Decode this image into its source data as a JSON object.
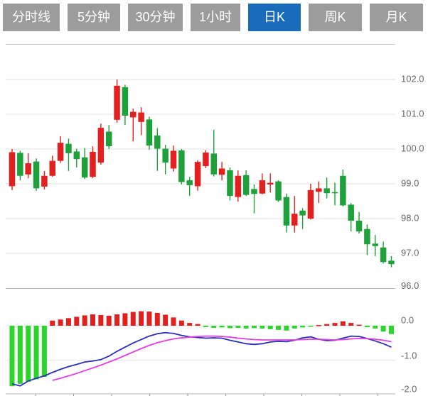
{
  "tabs": {
    "items": [
      {
        "label": "分时线",
        "name": "tab-timeline",
        "active": false
      },
      {
        "label": "5分钟",
        "name": "tab-5min",
        "active": false
      },
      {
        "label": "30分钟",
        "name": "tab-30min",
        "active": false
      },
      {
        "label": "1小时",
        "name": "tab-1hour",
        "active": false
      },
      {
        "label": "日K",
        "name": "tab-daily-k",
        "active": true
      },
      {
        "label": "周K",
        "name": "tab-weekly-k",
        "active": false
      },
      {
        "label": "月K",
        "name": "tab-monthly-k",
        "active": false
      }
    ],
    "active_color": "#1a6cba",
    "inactive_color": "#9c9c9c"
  },
  "chart_data": {
    "type": "candlestick",
    "title": "",
    "price_axis": {
      "labels": [
        "102.0",
        "101.0",
        "100.0",
        "99.0",
        "98.0",
        "97.0",
        "96.0"
      ],
      "values": [
        102.0,
        101.0,
        100.0,
        99.0,
        98.0,
        97.0,
        96.0
      ],
      "range": [
        96.0,
        103.1
      ],
      "grid": true,
      "position": "right"
    },
    "macd_axis": {
      "labels": [
        "0.0",
        "-1.0",
        "-2.0"
      ],
      "values": [
        0.0,
        -1.0,
        -2.0
      ],
      "range": [
        -2.0,
        0.45
      ]
    },
    "candles_ohlc": [
      [
        98.93,
        100.0,
        98.82,
        99.91
      ],
      [
        99.89,
        99.95,
        99.1,
        99.23
      ],
      [
        99.27,
        99.88,
        99.16,
        99.59
      ],
      [
        99.64,
        99.73,
        98.8,
        98.87
      ],
      [
        98.92,
        99.37,
        98.84,
        99.23
      ],
      [
        99.23,
        99.81,
        99.2,
        99.66
      ],
      [
        99.66,
        100.37,
        99.6,
        100.18
      ],
      [
        100.15,
        100.3,
        99.37,
        99.88
      ],
      [
        99.93,
        100.01,
        99.47,
        99.71
      ],
      [
        99.76,
        100.03,
        99.14,
        99.18
      ],
      [
        99.2,
        100.08,
        99.16,
        99.92
      ],
      [
        99.61,
        100.73,
        99.55,
        100.61
      ],
      [
        100.5,
        100.69,
        100.0,
        100.08
      ],
      [
        100.84,
        102.0,
        100.76,
        101.82
      ],
      [
        101.78,
        101.85,
        100.69,
        100.96
      ],
      [
        100.91,
        101.16,
        100.22,
        101.07
      ],
      [
        100.78,
        101.2,
        100.4,
        101.05
      ],
      [
        100.85,
        100.93,
        99.98,
        100.1
      ],
      [
        100.39,
        100.6,
        99.37,
        100.01
      ],
      [
        100.01,
        100.12,
        99.27,
        99.61
      ],
      [
        99.44,
        100.1,
        99.35,
        99.95
      ],
      [
        99.96,
        100.0,
        98.98,
        99.05
      ],
      [
        99.1,
        99.2,
        98.65,
        98.96
      ],
      [
        98.93,
        99.68,
        98.8,
        99.63
      ],
      [
        99.51,
        99.97,
        99.45,
        99.9
      ],
      [
        99.87,
        100.55,
        99.21,
        99.27
      ],
      [
        99.26,
        99.63,
        99.1,
        99.44
      ],
      [
        99.39,
        99.47,
        98.52,
        98.65
      ],
      [
        98.62,
        99.39,
        98.49,
        99.23
      ],
      [
        99.25,
        99.39,
        98.65,
        98.68
      ],
      [
        98.85,
        98.98,
        98.15,
        98.71
      ],
      [
        98.72,
        99.3,
        98.7,
        99.1
      ],
      [
        98.98,
        99.3,
        98.75,
        99.03
      ],
      [
        99.07,
        99.1,
        98.48,
        98.52
      ],
      [
        98.62,
        98.72,
        97.6,
        97.8
      ],
      [
        97.8,
        98.65,
        97.6,
        98.14
      ],
      [
        98.23,
        98.3,
        97.7,
        98.09
      ],
      [
        98.0,
        99.0,
        97.97,
        98.82
      ],
      [
        98.77,
        99.07,
        98.45,
        98.87
      ],
      [
        98.87,
        99.18,
        98.58,
        98.73
      ],
      [
        98.76,
        99.03,
        98.38,
        98.74
      ],
      [
        99.23,
        99.41,
        98.35,
        98.38
      ],
      [
        98.4,
        98.45,
        97.63,
        97.94
      ],
      [
        97.94,
        98.19,
        97.57,
        97.63
      ],
      [
        97.7,
        97.83,
        96.95,
        97.26
      ],
      [
        97.28,
        97.53,
        96.92,
        97.21
      ],
      [
        97.17,
        97.34,
        96.71,
        96.75
      ],
      [
        96.79,
        96.92,
        96.6,
        96.69
      ]
    ],
    "macd": {
      "histogram": [
        -1.75,
        -1.68,
        -1.62,
        -1.55,
        -1.48,
        0.15,
        0.18,
        0.22,
        0.26,
        0.3,
        0.33,
        0.31,
        0.29,
        0.33,
        0.36,
        0.4,
        0.42,
        0.41,
        0.37,
        0.32,
        0.24,
        0.15,
        0.08,
        0.05,
        -0.04,
        -0.06,
        -0.05,
        -0.07,
        -0.06,
        -0.08,
        -0.07,
        -0.08,
        -0.1,
        -0.12,
        -0.14,
        -0.08,
        -0.05,
        -0.03,
        0.02,
        0.05,
        0.08,
        0.13,
        0.08,
        0.03,
        -0.04,
        -0.08,
        -0.17,
        -0.24
      ],
      "dif": [
        -1.68,
        -1.74,
        -1.6,
        -1.52,
        -1.45,
        -1.35,
        -1.26,
        -1.18,
        -1.12,
        -1.05,
        -1.02,
        -0.98,
        -0.88,
        -0.74,
        -0.62,
        -0.5,
        -0.4,
        -0.3,
        -0.23,
        -0.2,
        -0.22,
        -0.28,
        -0.32,
        -0.34,
        -0.36,
        -0.35,
        -0.36,
        -0.42,
        -0.47,
        -0.52,
        -0.54,
        -0.52,
        -0.47,
        -0.45,
        -0.46,
        -0.42,
        -0.35,
        -0.32,
        -0.39,
        -0.43,
        -0.42,
        -0.36,
        -0.3,
        -0.31,
        -0.37,
        -0.44,
        -0.52,
        -0.62
      ],
      "dea": [
        null,
        null,
        null,
        null,
        null,
        -1.58,
        -1.52,
        -1.45,
        -1.38,
        -1.3,
        -1.22,
        -1.14,
        -1.05,
        -0.96,
        -0.86,
        -0.76,
        -0.66,
        -0.57,
        -0.49,
        -0.43,
        -0.38,
        -0.35,
        -0.33,
        -0.31,
        -0.3,
        -0.3,
        -0.31,
        -0.33,
        -0.36,
        -0.38,
        -0.4,
        -0.41,
        -0.41,
        -0.41,
        -0.41,
        -0.41,
        -0.4,
        -0.39,
        -0.39,
        -0.4,
        -0.41,
        -0.4,
        -0.38,
        -0.37,
        -0.37,
        -0.39,
        -0.42,
        -0.46
      ]
    },
    "colors": {
      "up": "#e22020",
      "down": "#1ea13a",
      "hist_positive": "#e22020",
      "hist_negative": "#2bd52b",
      "dif_line": "#2c2fb4",
      "dea_line": "#e23ee2",
      "grid": "#e2e2e2",
      "border_top": "#cccccc",
      "border_bottom": "#b5b5b5",
      "tick": "#999999",
      "label": "#666666"
    },
    "legend": [],
    "x_axis": {
      "tick_count": 10,
      "labels_visible": false
    }
  }
}
